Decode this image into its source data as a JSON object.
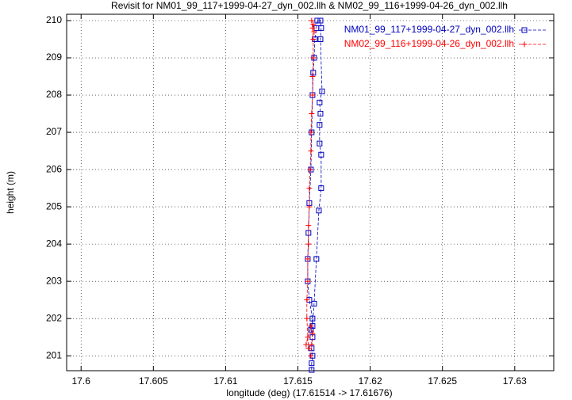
{
  "chart_data": {
    "type": "line",
    "title": "Revisit for NM01_99_117+1999-04-27_dyn_002.llh & NM02_99_116+1999-04-26_dyn_002.llh",
    "xlabel": "longitude (deg) (17.61514 -> 17.61676)",
    "ylabel": "height (m)",
    "xlim": [
      17.599,
      17.6327
    ],
    "ylim": [
      200.6,
      210.17
    ],
    "xticks": [
      17.6,
      17.605,
      17.61,
      17.615,
      17.62,
      17.625,
      17.63
    ],
    "yticks": [
      201,
      202,
      203,
      204,
      205,
      206,
      207,
      208,
      209,
      210
    ],
    "grid": true,
    "legend": "top-right",
    "series": [
      {
        "name": "NM01_99_117+1999-04-27_dyn_002.llh",
        "color": "#0000c0",
        "marker": "square",
        "x": [
          17.61595,
          17.61595,
          17.61601,
          17.61595,
          17.61601,
          17.6159,
          17.61601,
          17.61579,
          17.61568,
          17.61568,
          17.61573,
          17.61579,
          17.6159,
          17.61595,
          17.61601,
          17.61606,
          17.61612,
          17.61617,
          17.61628,
          17.61634,
          17.61656,
          17.61661,
          17.61656,
          17.61667,
          17.6165,
          17.61656,
          17.6165,
          17.6165,
          17.61661,
          17.61661,
          17.61645,
          17.61628,
          17.61612,
          17.61601
        ],
        "values": [
          200.62,
          200.8,
          201.0,
          201.2,
          201.5,
          201.7,
          202.0,
          202.5,
          203.0,
          203.6,
          204.3,
          205.1,
          206.0,
          207.0,
          208.0,
          208.6,
          209.0,
          209.5,
          209.8,
          210.0,
          210.0,
          209.8,
          209.5,
          208.1,
          207.8,
          207.5,
          207.2,
          206.7,
          206.4,
          205.5,
          204.9,
          203.6,
          202.4,
          201.8
        ]
      },
      {
        "name": "NM02_99_116+1999-04-26_dyn_002.llh",
        "color": "#ff0000",
        "marker": "plus",
        "x": [
          17.6159,
          17.61595,
          17.61601,
          17.6159,
          17.61557,
          17.61568,
          17.61573,
          17.61562,
          17.61562,
          17.61568,
          17.61568,
          17.61573,
          17.61573,
          17.61579,
          17.61579,
          17.61584,
          17.6159,
          17.6159,
          17.61595,
          17.61601,
          17.61601,
          17.61606,
          17.61606,
          17.61601,
          17.61595,
          17.61606,
          17.61612
        ],
        "values": [
          201.0,
          201.3,
          201.6,
          201.8,
          201.3,
          201.5,
          201.2,
          202.0,
          202.5,
          203.0,
          203.6,
          204.0,
          204.5,
          205.0,
          205.5,
          206.0,
          206.5,
          207.0,
          207.5,
          208.0,
          208.5,
          209.0,
          209.5,
          209.8,
          210.0,
          209.9,
          209.7
        ]
      }
    ]
  }
}
